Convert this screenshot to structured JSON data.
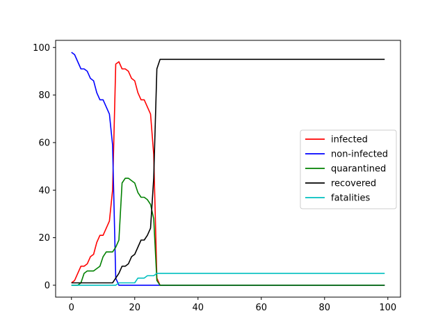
{
  "chart_data": {
    "type": "line",
    "title": "",
    "xlabel": "",
    "ylabel": "",
    "xlim": [
      -5,
      104
    ],
    "ylim": [
      -5,
      103
    ],
    "xticks": [
      0,
      20,
      40,
      60,
      80,
      100
    ],
    "yticks": [
      0,
      20,
      40,
      60,
      80,
      100
    ],
    "grid": false,
    "legend_position": "center-right",
    "series": [
      {
        "name": "infected",
        "color": "#ff0000",
        "points": [
          [
            0,
            1
          ],
          [
            1,
            2
          ],
          [
            2,
            5
          ],
          [
            3,
            8
          ],
          [
            4,
            8
          ],
          [
            5,
            9
          ],
          [
            6,
            12
          ],
          [
            7,
            13
          ],
          [
            8,
            18
          ],
          [
            9,
            21
          ],
          [
            10,
            21
          ],
          [
            11,
            24
          ],
          [
            12,
            27
          ],
          [
            13,
            40
          ],
          [
            14,
            93
          ],
          [
            15,
            94
          ],
          [
            16,
            91
          ],
          [
            17,
            91
          ],
          [
            18,
            90
          ],
          [
            19,
            87
          ],
          [
            20,
            86
          ],
          [
            21,
            81
          ],
          [
            22,
            78
          ],
          [
            23,
            78
          ],
          [
            24,
            75
          ],
          [
            25,
            72
          ],
          [
            26,
            55
          ],
          [
            27,
            3
          ],
          [
            28,
            0
          ],
          [
            99,
            0
          ]
        ]
      },
      {
        "name": "non-infected",
        "color": "#0000ff",
        "points": [
          [
            0,
            98
          ],
          [
            1,
            97
          ],
          [
            2,
            94
          ],
          [
            3,
            91
          ],
          [
            4,
            91
          ],
          [
            5,
            90
          ],
          [
            6,
            87
          ],
          [
            7,
            86
          ],
          [
            8,
            81
          ],
          [
            9,
            78
          ],
          [
            10,
            78
          ],
          [
            11,
            75
          ],
          [
            12,
            72
          ],
          [
            13,
            59
          ],
          [
            14,
            3
          ],
          [
            15,
            0
          ],
          [
            99,
            0
          ]
        ]
      },
      {
        "name": "quarantined",
        "color": "#008000",
        "points": [
          [
            0,
            0
          ],
          [
            1,
            0
          ],
          [
            2,
            0
          ],
          [
            3,
            1
          ],
          [
            4,
            5
          ],
          [
            5,
            6
          ],
          [
            6,
            6
          ],
          [
            7,
            6
          ],
          [
            8,
            7
          ],
          [
            9,
            8
          ],
          [
            10,
            12
          ],
          [
            11,
            14
          ],
          [
            12,
            14
          ],
          [
            13,
            14
          ],
          [
            14,
            16
          ],
          [
            15,
            19
          ],
          [
            16,
            43
          ],
          [
            17,
            45
          ],
          [
            18,
            45
          ],
          [
            19,
            44
          ],
          [
            20,
            43
          ],
          [
            21,
            39
          ],
          [
            22,
            37
          ],
          [
            23,
            37
          ],
          [
            24,
            36
          ],
          [
            25,
            34
          ],
          [
            26,
            28
          ],
          [
            27,
            2
          ],
          [
            28,
            0
          ],
          [
            99,
            0
          ]
        ]
      },
      {
        "name": "recovered",
        "color": "#000000",
        "points": [
          [
            0,
            1
          ],
          [
            13,
            1
          ],
          [
            14,
            3
          ],
          [
            15,
            5
          ],
          [
            16,
            8
          ],
          [
            17,
            8
          ],
          [
            18,
            9
          ],
          [
            19,
            12
          ],
          [
            20,
            13
          ],
          [
            21,
            16
          ],
          [
            22,
            19
          ],
          [
            23,
            19
          ],
          [
            24,
            21
          ],
          [
            25,
            24
          ],
          [
            26,
            45
          ],
          [
            27,
            91
          ],
          [
            28,
            95
          ],
          [
            99,
            95
          ]
        ]
      },
      {
        "name": "fatalities",
        "color": "#00bfbf",
        "points": [
          [
            0,
            0
          ],
          [
            14,
            0
          ],
          [
            15,
            1
          ],
          [
            20,
            1
          ],
          [
            21,
            3
          ],
          [
            22,
            3
          ],
          [
            23,
            3
          ],
          [
            24,
            4
          ],
          [
            25,
            4
          ],
          [
            26,
            4
          ],
          [
            27,
            5
          ],
          [
            99,
            5
          ]
        ]
      }
    ]
  }
}
